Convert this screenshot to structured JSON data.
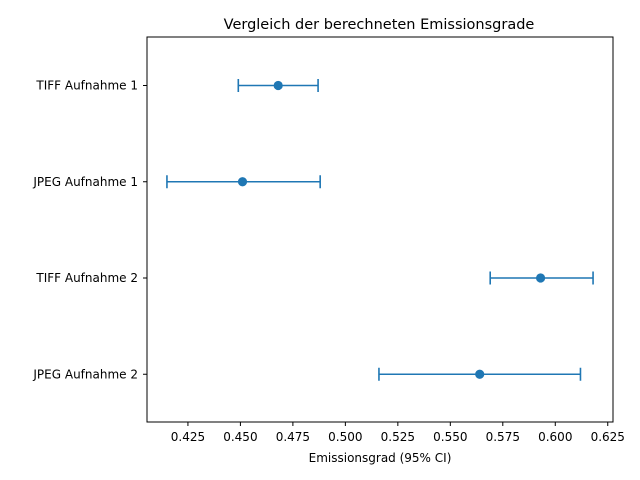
{
  "chart_data": {
    "type": "errorbar",
    "title": "Vergleich der berechneten Emissionsgrade",
    "xlabel": "Emissionsgrad (95% CI)",
    "ylabel": "",
    "xlim": [
      0.4055,
      0.6275
    ],
    "xticks": [
      0.425,
      0.45,
      0.475,
      0.5,
      0.525,
      0.55,
      0.575,
      0.6,
      0.625
    ],
    "xtick_labels": [
      "0.425",
      "0.450",
      "0.475",
      "0.500",
      "0.525",
      "0.550",
      "0.575",
      "0.600",
      "0.625"
    ],
    "categories": [
      "TIFF Aufnahme 1",
      "JPEG Aufnahme 1",
      "TIFF Aufnahme 2",
      "JPEG Aufnahme 2"
    ],
    "values": [
      0.468,
      0.451,
      0.593,
      0.564
    ],
    "ci_low": [
      0.449,
      0.415,
      0.569,
      0.516
    ],
    "ci_high": [
      0.487,
      0.488,
      0.618,
      0.612
    ],
    "color": "#1f77b4",
    "grid": false
  }
}
